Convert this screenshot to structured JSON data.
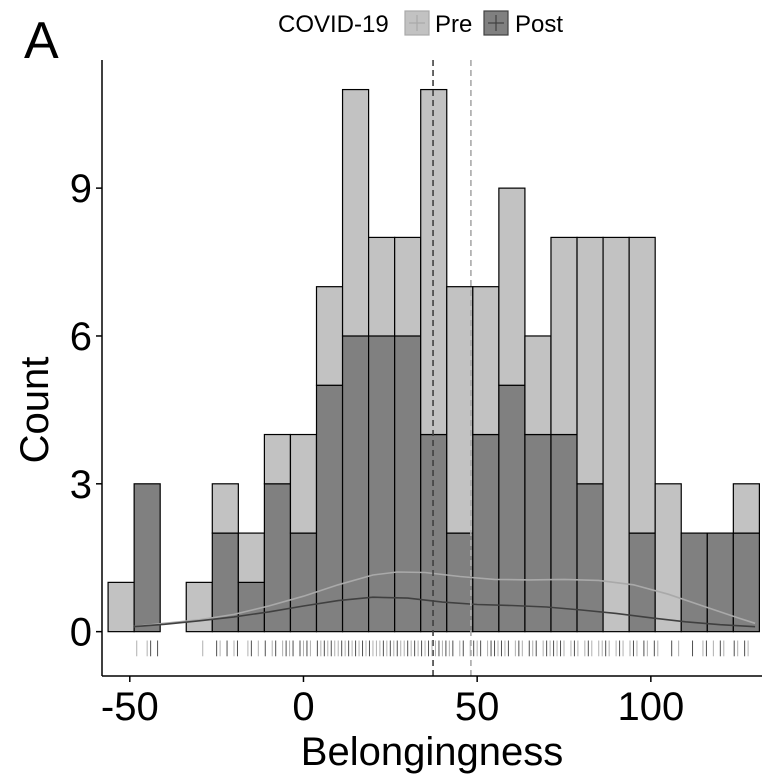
{
  "panel_label": "A",
  "legend": {
    "title": "COVID-19",
    "entries": [
      {
        "name": "Pre",
        "fill": "#c2c2c2",
        "line": "#a9a9a9"
      },
      {
        "name": "Post",
        "fill": "#808080",
        "line": "#404040"
      }
    ]
  },
  "chart_data": {
    "type": "bar",
    "subtype": "stacked-histogram",
    "title": "",
    "xlabel": "Belongingness",
    "ylabel": "Count",
    "xlim": [
      -58,
      132
    ],
    "ylim": [
      -0.9,
      11.6
    ],
    "x_ticks": [
      -50,
      0,
      50,
      100
    ],
    "y_ticks": [
      0,
      3,
      6,
      9
    ],
    "grid": false,
    "legend_position": "top",
    "bin_width": 7.5,
    "bin_left_edges": [
      -56.25,
      -48.75,
      -41.25,
      -33.75,
      -26.25,
      -18.75,
      -11.25,
      -3.75,
      3.75,
      11.25,
      18.75,
      26.25,
      33.75,
      41.25,
      48.75,
      56.25,
      63.75,
      71.25,
      78.75,
      86.25,
      93.75,
      101.25,
      108.75,
      116.25,
      123.75
    ],
    "series": [
      {
        "name": "Post",
        "values": [
          0,
          3,
          0,
          0,
          2,
          1,
          3,
          2,
          5,
          6,
          6,
          6,
          4,
          2,
          4,
          5,
          4,
          4,
          3,
          0,
          2,
          0,
          2,
          2,
          2
        ]
      },
      {
        "name": "Pre",
        "values": [
          1,
          0,
          0,
          1,
          1,
          1,
          1,
          2,
          2,
          5,
          2,
          2,
          7,
          5,
          3,
          4,
          2,
          4,
          5,
          8,
          6,
          3,
          0,
          0,
          1
        ]
      }
    ],
    "totals": [
      1,
      3,
      0,
      1,
      3,
      2,
      4,
      4,
      7,
      11,
      8,
      8,
      11,
      7,
      7,
      9,
      6,
      8,
      8,
      8,
      8,
      3,
      2,
      2,
      3
    ],
    "mean_lines": [
      {
        "series": "Post",
        "x": 37.3,
        "style": "dashed",
        "color": "#404040"
      },
      {
        "series": "Pre",
        "x": 48.2,
        "style": "dashed",
        "color": "#a9a9a9"
      }
    ],
    "density_curves": [
      {
        "series": "Pre",
        "color": "#a9a9a9",
        "x": [
          -49,
          -40,
          -30,
          -20,
          -10,
          0,
          10,
          20,
          27,
          35,
          45,
          55,
          65,
          75,
          85,
          95,
          105,
          115,
          125,
          130
        ],
        "y": [
          0.1,
          0.17,
          0.24,
          0.35,
          0.52,
          0.72,
          0.95,
          1.15,
          1.21,
          1.2,
          1.12,
          1.06,
          1.05,
          1.06,
          1.04,
          0.95,
          0.76,
          0.52,
          0.28,
          0.17
        ]
      },
      {
        "series": "Post",
        "color": "#404040",
        "x": [
          -49,
          -40,
          -30,
          -20,
          -10,
          0,
          10,
          20,
          30,
          40,
          50,
          60,
          70,
          80,
          90,
          100,
          110,
          120,
          130
        ],
        "y": [
          0.1,
          0.15,
          0.22,
          0.3,
          0.4,
          0.52,
          0.63,
          0.7,
          0.68,
          0.6,
          0.55,
          0.53,
          0.5,
          0.44,
          0.37,
          0.28,
          0.2,
          0.14,
          0.1
        ]
      }
    ],
    "rug_marks": {
      "Pre": [
        -48,
        -45,
        -29,
        -24,
        -20,
        -16,
        -13,
        -9,
        -6,
        -4,
        0,
        2,
        5,
        7,
        9,
        10,
        12,
        14,
        16,
        18,
        20,
        21,
        22,
        24,
        26,
        28,
        29,
        31,
        33,
        35,
        37,
        38,
        40,
        42,
        45,
        48,
        50,
        53,
        56,
        58,
        61,
        63,
        66,
        69,
        71,
        73,
        75,
        77,
        79,
        81,
        83,
        85,
        86,
        88,
        90,
        92,
        94,
        96,
        99,
        102,
        108,
        115,
        118,
        121,
        125,
        128
      ],
      "Post": [
        -44,
        -42,
        -25,
        -22,
        -19,
        -15,
        -11,
        -8,
        -5,
        -3,
        -1,
        1,
        4,
        6,
        8,
        11,
        13,
        15,
        17,
        19,
        23,
        25,
        27,
        30,
        32,
        34,
        36,
        39,
        41,
        43,
        46,
        49,
        51,
        54,
        55,
        57,
        59,
        62,
        65,
        67,
        70,
        72,
        74,
        78,
        82,
        87,
        91,
        95,
        98,
        101,
        106,
        112,
        116,
        120,
        124,
        127
      ]
    }
  }
}
